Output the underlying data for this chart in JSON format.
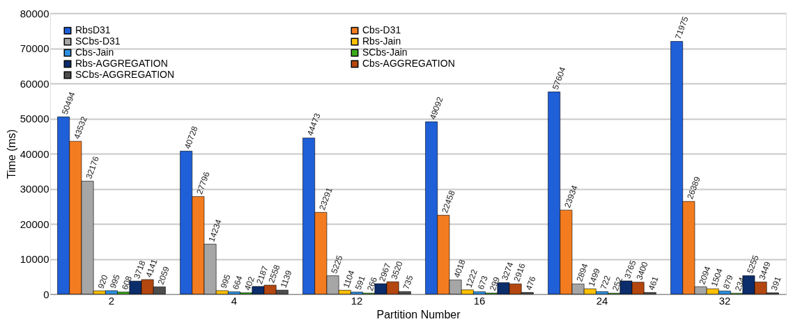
{
  "chart_data": {
    "type": "bar",
    "xlabel": "Partition Number",
    "ylabel": "Time (ms)",
    "categories": [
      "2",
      "4",
      "12",
      "16",
      "24",
      "32"
    ],
    "series": [
      {
        "name": "RbsD31",
        "color": "#1f5fd8",
        "values": [
          50494,
          40728,
          44473,
          49092,
          57604,
          71975
        ]
      },
      {
        "name": "Cbs-D31",
        "color": "#f47c20",
        "values": [
          43532,
          27796,
          23291,
          22458,
          23934,
          26389
        ]
      },
      {
        "name": "SCbs-D31",
        "color": "#a6a6a6",
        "values": [
          32176,
          14234,
          5225,
          4018,
          2894,
          2094
        ]
      },
      {
        "name": "Rbs-Jain",
        "color": "#ffc000",
        "values": [
          920,
          995,
          1104,
          1222,
          1499,
          1504
        ]
      },
      {
        "name": "Cbs-Jain",
        "color": "#2e8fe0",
        "values": [
          995,
          664,
          591,
          673,
          722,
          879
        ]
      },
      {
        "name": "SCbs-Jain",
        "color": "#3aaa1a",
        "values": [
          608,
          402,
          266,
          299,
          252,
          234
        ]
      },
      {
        "name": "Rbs-AGGREGATION",
        "color": "#0c2d6b",
        "values": [
          3718,
          2187,
          2967,
          3274,
          3765,
          5255
        ]
      },
      {
        "name": "Cbs-AGGREGATION",
        "color": "#b3470f",
        "values": [
          4141,
          2558,
          3520,
          2916,
          3400,
          3449
        ]
      },
      {
        "name": "SCbs-AGGREGATION",
        "color": "#4d4d4d",
        "values": [
          2059,
          1139,
          735,
          476,
          461,
          391
        ]
      }
    ],
    "ylim": [
      0,
      80000
    ],
    "yticks": [
      0,
      10000,
      20000,
      30000,
      40000,
      50000,
      60000,
      70000,
      80000
    ],
    "grid": "y",
    "legend": "top left",
    "data_labels": true
  }
}
